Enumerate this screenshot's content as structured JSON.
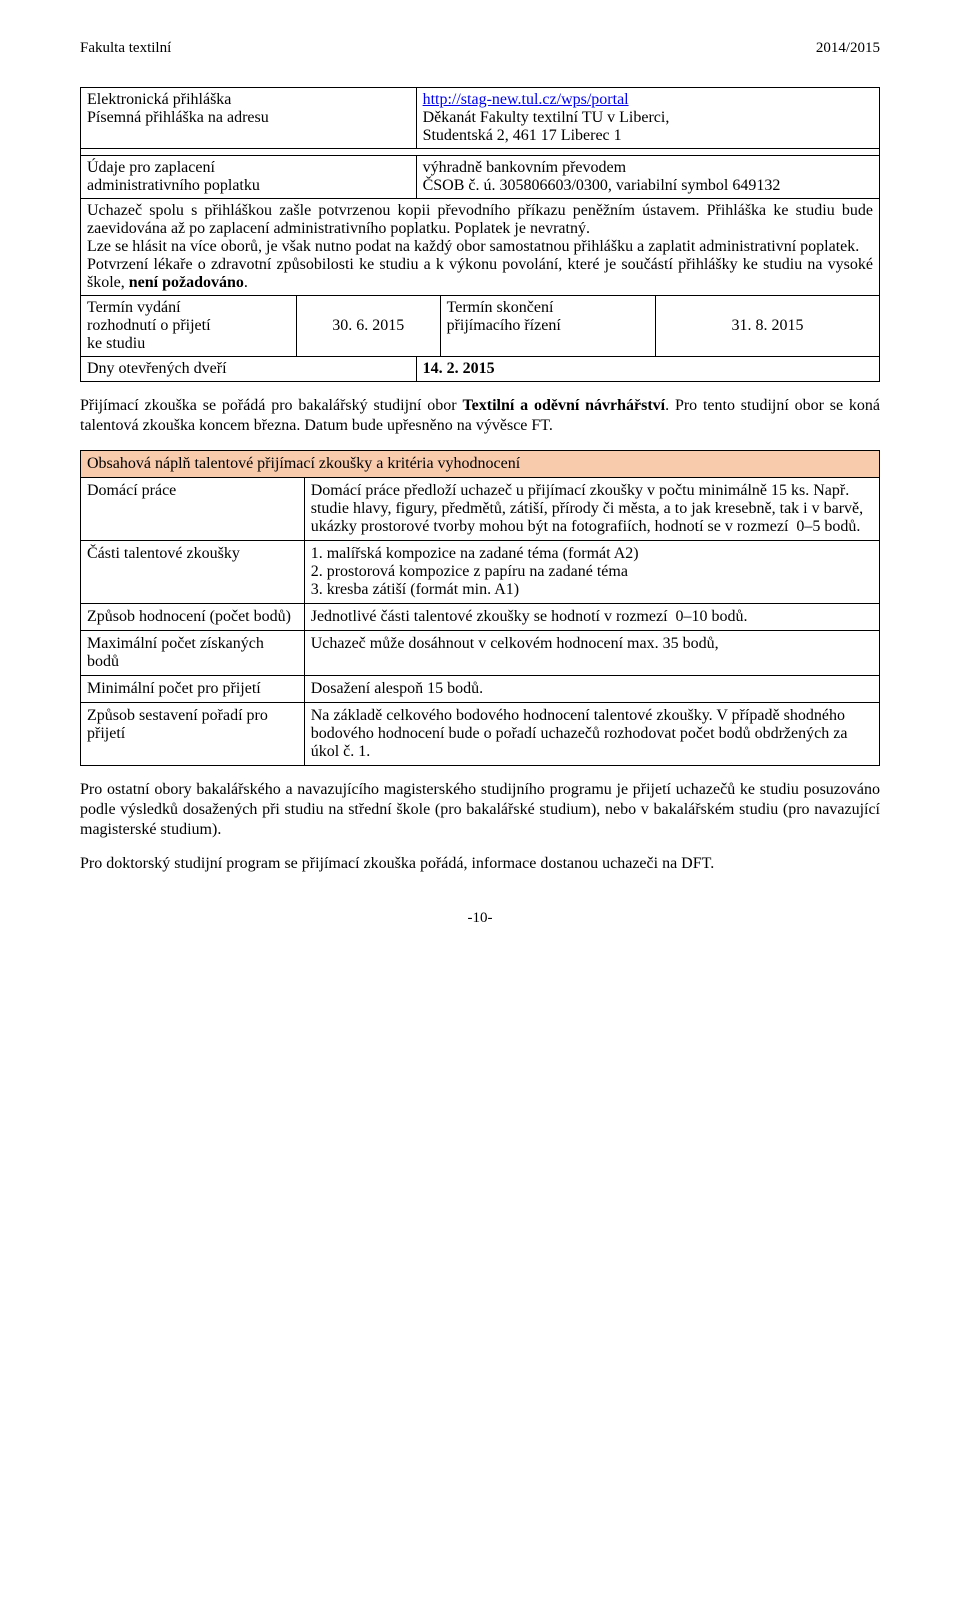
{
  "header": {
    "left": "Fakulta textilní",
    "right": "2014/2015"
  },
  "infoTable": {
    "row1": {
      "l1": "Elektronická přihláška",
      "r1a": "http://stag-new.tul.cz/wps/portal",
      "l2": "Písemná přihláška na adresu",
      "r2a": "Děkanát Fakulty textilní TU v Liberci,",
      "r2b": "Studentská 2, 461 17 Liberec 1"
    },
    "row2": {
      "l1": "Údaje pro zaplacení",
      "l2": "administrativního poplatku",
      "r1": "výhradně bankovním převodem",
      "r2": "ČSOB č. ú. 305806603/0300, variabilní symbol 649132"
    },
    "fullText": "Uchazeč spolu s přihláškou zašle potvrzenou kopii převodního příkazu peněžním ústavem. Přihláška ke studiu bude zaevidována až po zaplacení administrativního poplatku. Poplatek je nevratný.\nLze se hlásit na více oborů, je však nutno podat na každý obor samostatnou přihlášku a zaplatit administrativní poplatek.\nPotvrzení lékaře o zdravotní způsobilosti ke studiu a k výkonu povolání, které je součástí přihlášky ke studiu na vysoké škole, ",
    "fullTextBold": "není požadováno",
    "fullTextAfter": ".",
    "row4": {
      "c1a": "Termín vydání",
      "c1b": "rozhodnutí o přijetí",
      "c1c": "ke studiu",
      "c2": "30. 6. 2015",
      "c3a": "Termín skončení",
      "c3b": "přijímacího řízení",
      "c4": "31. 8. 2015"
    },
    "row5": {
      "l": "Dny otevřených dveří",
      "r": "14. 2. 2015"
    }
  },
  "midPara": {
    "pre": "Přijímací zkouška se pořádá pro bakalářský studijní obor ",
    "bold": "Textilní a oděvní návrhářství",
    "post": ". Pro tento studijní obor se koná talentová zkouška koncem března. Datum bude upřesněno na vývěsce FT."
  },
  "examTable": {
    "headerRow": "Obsahová náplň talentové přijímací zkoušky a kritéria vyhodnocení",
    "rows": [
      {
        "left": "Domácí práce",
        "right": "Domácí práce předloží uchazeč u přijímací zkoušky v počtu minimálně 15 ks. Např. studie hlavy, figury, předmětů, zátiší, přírody či města, a to jak kresebně, tak i v barvě, ukázky prostorové tvorby mohou být na fotografiích, hodnotí se v rozmezí  0–5 bodů."
      },
      {
        "left": "Části talentové zkoušky",
        "right": "1. malířská kompozice na zadané téma (formát A2)\n2. prostorová kompozice z papíru na zadané téma\n3. kresba zátiší (formát min. A1)"
      },
      {
        "left": "Způsob hodnocení (počet bodů)",
        "right": "Jednotlivé části talentové zkoušky se hodnotí v rozmezí  0–10 bodů."
      },
      {
        "left": "Maximální počet získaných bodů",
        "right": "Uchazeč může dosáhnout v celkovém hodnocení max. 35 bodů,"
      },
      {
        "left": "Minimální počet pro přijetí",
        "right": "Dosažení alespoň 15 bodů."
      },
      {
        "left": "Způsob sestavení pořadí pro přijetí",
        "right": "Na základě celkového bodového hodnocení talentové zkoušky. V případě shodného bodového hodnocení bude o pořadí uchazečů rozhodovat počet bodů obdržených za úkol č. 1."
      }
    ]
  },
  "para2": "Pro ostatní obory bakalářského a navazujícího magisterského studijního programu je přijetí uchazečů ke studiu posuzováno podle výsledků dosažených při studiu na střední škole (pro bakalářské studium), nebo v bakalářském studiu (pro navazující magisterské studium).",
  "para3": "Pro doktorský studijní program se přijímací zkouška pořádá, informace dostanou uchazeči na DFT.",
  "pageNum": "-10-",
  "colors": {
    "examHeaderBg": "#f8cbad",
    "text": "#000000",
    "link": "#0000ee",
    "bg": "#ffffff"
  }
}
